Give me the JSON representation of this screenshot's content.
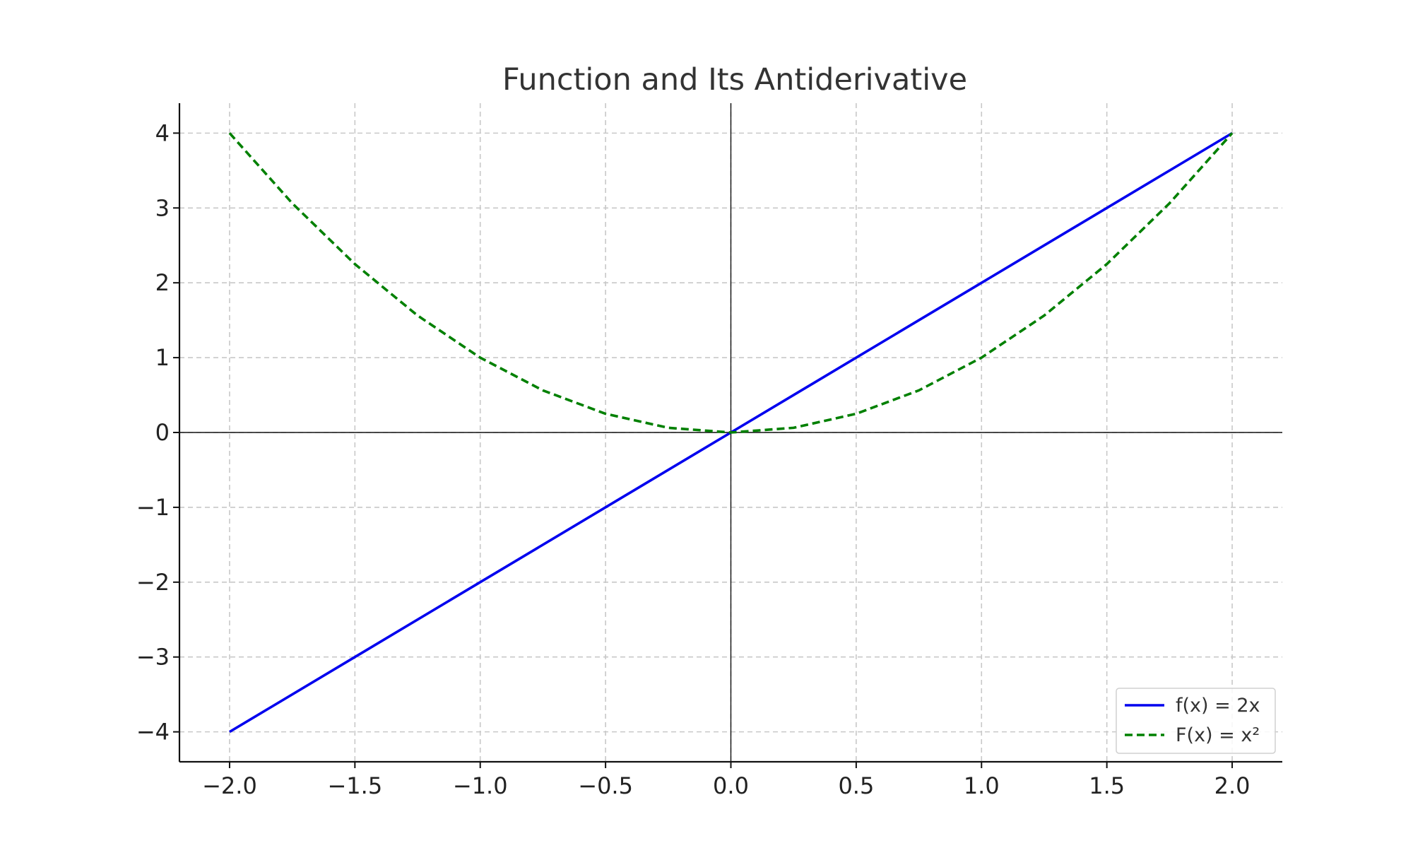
{
  "chart_data": {
    "type": "line",
    "title": "Function and Its Antiderivative",
    "xlabel": "",
    "ylabel": "",
    "xlim": [
      -2.2,
      2.2
    ],
    "ylim": [
      -4.4,
      4.4
    ],
    "x_ticks": [
      -2.0,
      -1.5,
      -1.0,
      -0.5,
      0.0,
      0.5,
      1.0,
      1.5,
      2.0
    ],
    "x_tick_labels": [
      "−2.0",
      "−1.5",
      "−1.0",
      "−0.5",
      "0.0",
      "0.5",
      "1.0",
      "1.5",
      "2.0"
    ],
    "y_ticks": [
      4,
      3,
      2,
      1,
      0,
      -1,
      -2,
      -3,
      -4
    ],
    "y_tick_labels": [
      "4",
      "3",
      "2",
      "1",
      "0",
      "−1",
      "−2",
      "−3",
      "−4"
    ],
    "grid": true,
    "legend_position": "bottom-right",
    "series": [
      {
        "name": "f(x) = 2x",
        "color": "#0000ee",
        "style": "solid",
        "x": [
          -2.0,
          2.0
        ],
        "y": [
          -4.0,
          4.0
        ]
      },
      {
        "name": "F(x) = x²",
        "color": "#008000",
        "style": "dashed",
        "x": [
          -2.0,
          -1.75,
          -1.5,
          -1.25,
          -1.0,
          -0.75,
          -0.5,
          -0.25,
          0.0,
          0.25,
          0.5,
          0.75,
          1.0,
          1.25,
          1.5,
          1.75,
          2.0
        ],
        "y": [
          4.0,
          3.0625,
          2.25,
          1.5625,
          1.0,
          0.5625,
          0.25,
          0.0625,
          0.0,
          0.0625,
          0.25,
          0.5625,
          1.0,
          1.5625,
          2.25,
          3.0625,
          4.0
        ]
      }
    ]
  }
}
